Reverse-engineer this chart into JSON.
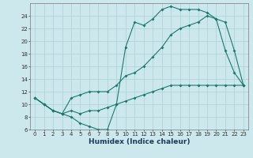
{
  "xlabel": "Humidex (Indice chaleur)",
  "ylabel": "",
  "bg_color": "#cce8ec",
  "grid_color": "#aad0d6",
  "line_color": "#1a7a6e",
  "xlim": [
    -0.5,
    23.5
  ],
  "ylim": [
    6,
    26
  ],
  "yticks": [
    6,
    8,
    10,
    12,
    14,
    16,
    18,
    20,
    22,
    24
  ],
  "xticks": [
    0,
    1,
    2,
    3,
    4,
    5,
    6,
    7,
    8,
    9,
    10,
    11,
    12,
    13,
    14,
    15,
    16,
    17,
    18,
    19,
    20,
    21,
    22,
    23
  ],
  "line1_x": [
    0,
    1,
    2,
    3,
    4,
    5,
    6,
    7,
    8,
    9,
    10,
    11,
    12,
    13,
    14,
    15,
    16,
    17,
    18,
    19,
    20,
    21,
    22,
    23
  ],
  "line1_y": [
    11,
    10,
    9,
    8.5,
    8,
    7,
    6.5,
    6,
    6,
    10,
    19,
    23,
    22.5,
    23.5,
    25,
    25.5,
    25,
    25,
    25,
    24.5,
    23.5,
    18.5,
    15,
    13
  ],
  "line2_x": [
    0,
    1,
    2,
    3,
    4,
    5,
    6,
    7,
    8,
    9,
    10,
    11,
    12,
    13,
    14,
    15,
    16,
    17,
    18,
    19,
    20,
    21,
    22,
    23
  ],
  "line2_y": [
    11,
    10,
    9,
    8.5,
    11,
    11.5,
    12,
    12,
    12,
    13,
    14.5,
    15,
    16,
    17.5,
    19,
    21,
    22,
    22.5,
    23,
    24,
    23.5,
    23,
    18.5,
    13
  ],
  "line3_x": [
    0,
    1,
    2,
    3,
    4,
    5,
    6,
    7,
    8,
    9,
    10,
    11,
    12,
    13,
    14,
    15,
    16,
    17,
    18,
    19,
    20,
    21,
    22,
    23
  ],
  "line3_y": [
    11,
    10,
    9,
    8.5,
    9,
    8.5,
    9,
    9,
    9.5,
    10,
    10.5,
    11,
    11.5,
    12,
    12.5,
    13,
    13,
    13,
    13,
    13,
    13,
    13,
    13,
    13
  ],
  "tick_fontsize": 5.0,
  "xlabel_fontsize": 6.5,
  "marker_size": 2.0
}
